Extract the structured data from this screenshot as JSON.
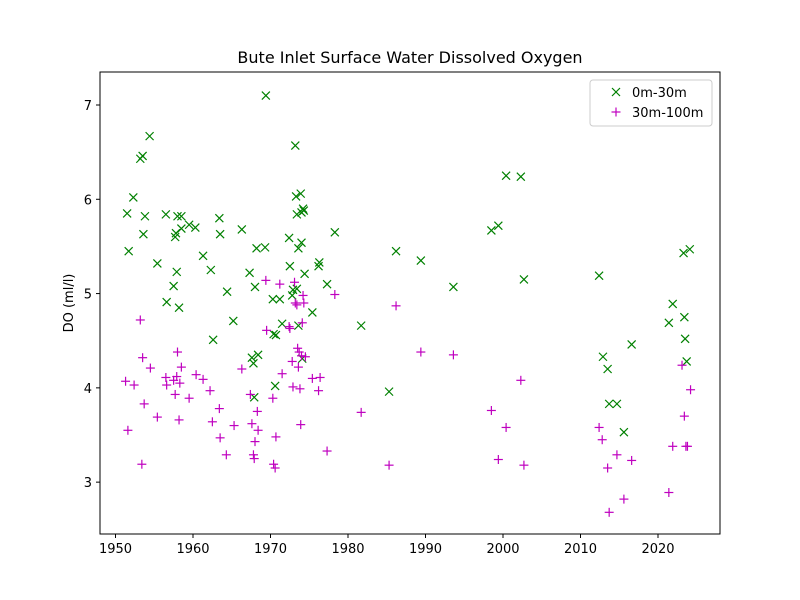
{
  "chart_data": {
    "type": "scatter",
    "title": "Bute Inlet Surface Water Dissolved Oxygen",
    "xlabel": "",
    "ylabel": "DO (ml/l)",
    "xlim": [
      1948,
      2028
    ],
    "ylim": [
      2.45,
      7.35
    ],
    "xticks": [
      1950,
      1960,
      1970,
      1980,
      1990,
      2000,
      2010,
      2020
    ],
    "yticks": [
      3,
      4,
      5,
      6,
      7
    ],
    "grid": false,
    "legend_position": "top-right",
    "series": [
      {
        "name": "0m-30m",
        "marker": "x",
        "color": "#008000",
        "points": [
          [
            1951.5,
            5.85
          ],
          [
            1951.7,
            5.45
          ],
          [
            1952.3,
            6.02
          ],
          [
            1953.2,
            6.43
          ],
          [
            1953.5,
            6.46
          ],
          [
            1953.6,
            5.63
          ],
          [
            1953.8,
            5.82
          ],
          [
            1954.4,
            6.67
          ],
          [
            1955.4,
            5.32
          ],
          [
            1956.5,
            5.84
          ],
          [
            1956.6,
            4.91
          ],
          [
            1957.5,
            5.08
          ],
          [
            1957.7,
            5.6
          ],
          [
            1957.8,
            5.64
          ],
          [
            1957.9,
            5.23
          ],
          [
            1958.0,
            5.82
          ],
          [
            1958.2,
            4.85
          ],
          [
            1958.5,
            5.82
          ],
          [
            1958.5,
            5.69
          ],
          [
            1959.5,
            5.73
          ],
          [
            1960.3,
            5.7
          ],
          [
            1961.3,
            5.4
          ],
          [
            1962.3,
            5.25
          ],
          [
            1962.6,
            4.51
          ],
          [
            1963.4,
            5.8
          ],
          [
            1963.5,
            5.63
          ],
          [
            1964.4,
            5.02
          ],
          [
            1965.2,
            4.71
          ],
          [
            1966.3,
            5.68
          ],
          [
            1967.3,
            5.22
          ],
          [
            1967.6,
            4.32
          ],
          [
            1967.8,
            4.26
          ],
          [
            1967.9,
            3.9
          ],
          [
            1968.0,
            5.07
          ],
          [
            1968.2,
            5.48
          ],
          [
            1968.4,
            4.35
          ],
          [
            1969.3,
            5.49
          ],
          [
            1969.4,
            7.1
          ],
          [
            1970.3,
            4.94
          ],
          [
            1970.4,
            4.57
          ],
          [
            1970.6,
            4.02
          ],
          [
            1970.7,
            4.56
          ],
          [
            1971.2,
            4.94
          ],
          [
            1971.5,
            4.68
          ],
          [
            1972.4,
            5.59
          ],
          [
            1972.5,
            5.29
          ],
          [
            1972.8,
            4.98
          ],
          [
            1972.9,
            5.04
          ],
          [
            1973.2,
            6.57
          ],
          [
            1973.3,
            6.03
          ],
          [
            1973.4,
            5.84
          ],
          [
            1973.4,
            5.05
          ],
          [
            1973.6,
            5.48
          ],
          [
            1973.6,
            4.66
          ],
          [
            1973.9,
            6.06
          ],
          [
            1974.0,
            5.86
          ],
          [
            1974.0,
            5.54
          ],
          [
            1974.1,
            4.31
          ],
          [
            1974.2,
            5.9
          ],
          [
            1974.3,
            5.88
          ],
          [
            1974.4,
            5.21
          ],
          [
            1975.4,
            4.8
          ],
          [
            1976.2,
            5.29
          ],
          [
            1976.3,
            5.33
          ],
          [
            1977.3,
            5.1
          ],
          [
            1978.3,
            5.65
          ],
          [
            1981.7,
            4.66
          ],
          [
            1985.3,
            3.96
          ],
          [
            1986.2,
            5.45
          ],
          [
            1989.4,
            5.35
          ],
          [
            1993.6,
            5.07
          ],
          [
            1998.5,
            5.67
          ],
          [
            1999.4,
            5.72
          ],
          [
            2000.4,
            6.25
          ],
          [
            2002.3,
            6.24
          ],
          [
            2002.7,
            5.15
          ],
          [
            2012.4,
            5.19
          ],
          [
            2012.9,
            4.33
          ],
          [
            2013.5,
            4.2
          ],
          [
            2013.7,
            3.83
          ],
          [
            2014.7,
            3.83
          ],
          [
            2015.6,
            3.53
          ],
          [
            2016.6,
            4.46
          ],
          [
            2021.4,
            4.69
          ],
          [
            2021.9,
            4.89
          ],
          [
            2023.3,
            5.43
          ],
          [
            2023.4,
            4.75
          ],
          [
            2023.5,
            4.52
          ],
          [
            2023.7,
            4.28
          ],
          [
            2024.1,
            5.47
          ]
        ]
      },
      {
        "name": "30m-100m",
        "marker": "+",
        "color": "#bf00bf",
        "points": [
          [
            1951.3,
            4.07
          ],
          [
            1951.6,
            3.55
          ],
          [
            1952.4,
            4.03
          ],
          [
            1953.2,
            4.72
          ],
          [
            1953.4,
            3.19
          ],
          [
            1953.5,
            4.32
          ],
          [
            1953.7,
            3.83
          ],
          [
            1954.5,
            4.21
          ],
          [
            1955.4,
            3.69
          ],
          [
            1956.5,
            4.11
          ],
          [
            1956.6,
            4.03
          ],
          [
            1957.5,
            4.08
          ],
          [
            1957.7,
            3.93
          ],
          [
            1957.9,
            4.12
          ],
          [
            1958.0,
            4.38
          ],
          [
            1958.2,
            3.66
          ],
          [
            1958.3,
            4.05
          ],
          [
            1958.5,
            4.22
          ],
          [
            1959.5,
            3.89
          ],
          [
            1960.4,
            4.14
          ],
          [
            1961.3,
            4.09
          ],
          [
            1962.2,
            3.97
          ],
          [
            1962.5,
            3.64
          ],
          [
            1963.4,
            3.78
          ],
          [
            1963.5,
            3.47
          ],
          [
            1964.3,
            3.29
          ],
          [
            1965.3,
            3.6
          ],
          [
            1966.3,
            4.2
          ],
          [
            1967.4,
            3.93
          ],
          [
            1967.6,
            3.62
          ],
          [
            1967.8,
            3.29
          ],
          [
            1967.9,
            3.25
          ],
          [
            1968.0,
            3.43
          ],
          [
            1968.3,
            3.75
          ],
          [
            1968.4,
            3.55
          ],
          [
            1969.4,
            5.14
          ],
          [
            1969.5,
            4.61
          ],
          [
            1970.3,
            3.89
          ],
          [
            1970.4,
            3.19
          ],
          [
            1970.6,
            3.15
          ],
          [
            1970.7,
            3.48
          ],
          [
            1971.2,
            5.1
          ],
          [
            1971.5,
            4.15
          ],
          [
            1972.4,
            4.65
          ],
          [
            1972.5,
            4.63
          ],
          [
            1972.8,
            4.28
          ],
          [
            1972.9,
            4.01
          ],
          [
            1973.1,
            5.12
          ],
          [
            1973.2,
            4.9
          ],
          [
            1973.4,
            4.88
          ],
          [
            1973.5,
            4.42
          ],
          [
            1973.6,
            4.22
          ],
          [
            1973.7,
            4.38
          ],
          [
            1973.8,
            3.99
          ],
          [
            1973.9,
            3.61
          ],
          [
            1974.0,
            4.34
          ],
          [
            1974.1,
            4.69
          ],
          [
            1974.2,
            4.98
          ],
          [
            1974.3,
            4.9
          ],
          [
            1974.5,
            4.33
          ],
          [
            1975.4,
            4.1
          ],
          [
            1976.2,
            3.97
          ],
          [
            1976.4,
            4.11
          ],
          [
            1977.3,
            3.33
          ],
          [
            1978.3,
            4.99
          ],
          [
            1981.7,
            3.74
          ],
          [
            1985.3,
            3.18
          ],
          [
            1986.2,
            4.87
          ],
          [
            1989.4,
            4.38
          ],
          [
            1993.6,
            4.35
          ],
          [
            1998.5,
            3.76
          ],
          [
            1999.4,
            3.24
          ],
          [
            2000.4,
            3.58
          ],
          [
            2002.3,
            4.08
          ],
          [
            2002.7,
            3.18
          ],
          [
            2012.4,
            3.58
          ],
          [
            2012.8,
            3.45
          ],
          [
            2013.5,
            3.15
          ],
          [
            2013.7,
            2.68
          ],
          [
            2014.7,
            3.29
          ],
          [
            2015.6,
            2.82
          ],
          [
            2016.6,
            3.23
          ],
          [
            2021.4,
            2.89
          ],
          [
            2021.9,
            3.38
          ],
          [
            2023.1,
            4.24
          ],
          [
            2023.4,
            3.7
          ],
          [
            2023.6,
            3.38
          ],
          [
            2023.8,
            3.38
          ],
          [
            2024.2,
            3.98
          ]
        ]
      }
    ]
  }
}
